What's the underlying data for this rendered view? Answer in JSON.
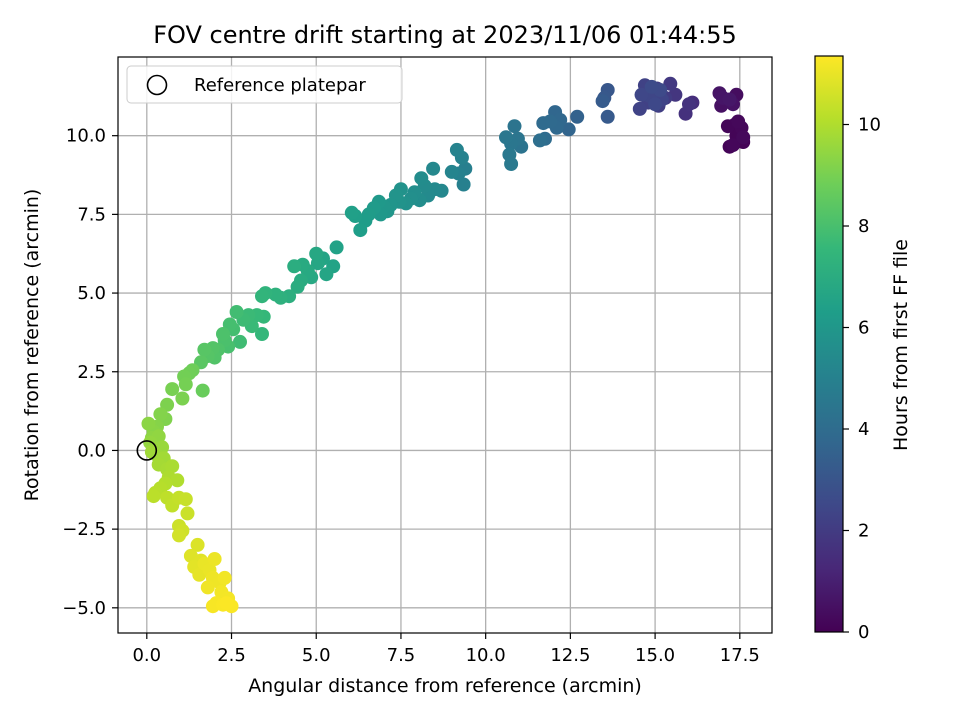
{
  "chart_data": {
    "type": "scatter",
    "title": "FOV centre drift starting at 2023/11/06 01:44:55",
    "xlabel": "Angular distance from reference (arcmin)",
    "ylabel": "Rotation from reference (arcmin)",
    "xlim": [
      -0.85,
      18.45
    ],
    "ylim": [
      -5.8,
      12.5
    ],
    "xticks": [
      0.0,
      2.5,
      5.0,
      7.5,
      10.0,
      12.5,
      15.0,
      17.5
    ],
    "xtick_labels": [
      "0.0",
      "2.5",
      "5.0",
      "7.5",
      "10.0",
      "12.5",
      "15.0",
      "17.5"
    ],
    "yticks": [
      -5.0,
      -2.5,
      0.0,
      2.5,
      5.0,
      7.5,
      10.0
    ],
    "ytick_labels": [
      "−5.0",
      "−2.5",
      "0.0",
      "2.5",
      "5.0",
      "7.5",
      "10.0"
    ],
    "grid": true,
    "legend": {
      "position": "upper-left",
      "entries": [
        "Reference platepar"
      ]
    },
    "reference_point": {
      "x": 0.0,
      "y": 0.0,
      "label": "Reference platepar"
    },
    "colorbar": {
      "label": "Hours from first FF file",
      "colormap": "viridis",
      "range": [
        0,
        11.35
      ],
      "ticks": [
        0,
        2,
        4,
        6,
        8,
        10
      ],
      "tick_labels": [
        "0",
        "2",
        "4",
        "6",
        "8",
        "10"
      ]
    },
    "viridis_stops": [
      "#440154",
      "#482878",
      "#3e4989",
      "#31688e",
      "#26828e",
      "#1f9e89",
      "#35b779",
      "#6ece58",
      "#b5de2b",
      "#fde725"
    ],
    "points": [
      [
        17.35,
        10.35,
        0.02
      ],
      [
        17.5,
        10.1,
        0.05
      ],
      [
        17.6,
        9.8,
        0.08
      ],
      [
        17.2,
        9.65,
        0.1
      ],
      [
        17.4,
        10.0,
        0.12
      ],
      [
        17.15,
        10.3,
        0.15
      ],
      [
        17.55,
        10.25,
        0.18
      ],
      [
        17.3,
        9.7,
        0.2
      ],
      [
        17.45,
        10.45,
        0.22
      ],
      [
        17.6,
        9.95,
        0.25
      ],
      [
        17.4,
        11.3,
        0.4
      ],
      [
        17.1,
        11.1,
        0.45
      ],
      [
        16.95,
        10.95,
        0.5
      ],
      [
        17.3,
        11.0,
        0.55
      ],
      [
        16.9,
        11.35,
        0.6
      ],
      [
        17.0,
        11.2,
        0.65
      ],
      [
        17.2,
        11.15,
        0.7
      ],
      [
        16.1,
        11.05,
        1.5
      ],
      [
        15.9,
        10.7,
        1.6
      ],
      [
        16.0,
        11.0,
        1.7
      ],
      [
        15.6,
        11.3,
        1.8
      ],
      [
        15.45,
        11.65,
        1.9
      ],
      [
        15.3,
        11.2,
        2.0
      ],
      [
        15.05,
        11.5,
        2.05
      ],
      [
        15.1,
        10.95,
        2.1
      ],
      [
        14.95,
        11.35,
        2.15
      ],
      [
        14.8,
        11.05,
        2.2
      ],
      [
        14.7,
        11.6,
        2.25
      ],
      [
        14.55,
        10.85,
        2.3
      ],
      [
        15.2,
        11.15,
        2.35
      ],
      [
        14.85,
        11.25,
        2.4
      ],
      [
        14.6,
        11.3,
        2.45
      ],
      [
        15.0,
        11.0,
        2.5
      ],
      [
        15.15,
        11.45,
        2.55
      ],
      [
        14.9,
        11.55,
        2.6
      ],
      [
        13.6,
        11.45,
        3.1
      ],
      [
        13.5,
        11.2,
        3.15
      ],
      [
        13.6,
        10.6,
        3.2
      ],
      [
        13.45,
        11.1,
        3.25
      ],
      [
        12.7,
        10.6,
        3.55
      ],
      [
        12.45,
        10.2,
        3.65
      ],
      [
        12.05,
        10.75,
        3.75
      ],
      [
        12.2,
        10.5,
        3.8
      ],
      [
        12.1,
        10.25,
        3.85
      ],
      [
        11.9,
        10.45,
        3.9
      ],
      [
        11.7,
        10.4,
        3.95
      ],
      [
        11.75,
        9.9,
        4.0
      ],
      [
        11.6,
        9.85,
        4.1
      ],
      [
        11.05,
        9.65,
        4.3
      ],
      [
        10.85,
        10.3,
        4.35
      ],
      [
        10.95,
        9.9,
        4.4
      ],
      [
        10.75,
        9.75,
        4.45
      ],
      [
        10.6,
        9.95,
        4.5
      ],
      [
        10.7,
        9.4,
        4.55
      ],
      [
        10.75,
        9.1,
        4.6
      ],
      [
        9.4,
        8.95,
        4.9
      ],
      [
        9.35,
        8.45,
        4.95
      ],
      [
        9.2,
        8.8,
        5.0
      ],
      [
        9.3,
        9.3,
        5.05
      ],
      [
        9.15,
        9.55,
        5.1
      ],
      [
        9.0,
        8.85,
        5.15
      ],
      [
        8.7,
        8.25,
        5.25
      ],
      [
        8.45,
        8.95,
        5.3
      ],
      [
        8.5,
        8.3,
        5.35
      ],
      [
        8.3,
        8.1,
        5.4
      ],
      [
        8.2,
        8.4,
        5.45
      ],
      [
        8.1,
        8.65,
        5.5
      ],
      [
        8.05,
        7.95,
        5.55
      ],
      [
        7.9,
        8.2,
        5.6
      ],
      [
        7.8,
        8.0,
        5.65
      ],
      [
        7.65,
        7.85,
        5.7
      ],
      [
        7.5,
        8.3,
        5.75
      ],
      [
        7.45,
        7.9,
        5.8
      ],
      [
        7.35,
        8.1,
        5.85
      ],
      [
        7.2,
        7.8,
        5.9
      ],
      [
        7.1,
        7.6,
        5.95
      ],
      [
        7.0,
        7.75,
        6.0
      ],
      [
        6.9,
        7.5,
        6.05
      ],
      [
        6.85,
        7.9,
        6.1
      ],
      [
        6.7,
        7.7,
        6.15
      ],
      [
        6.55,
        7.5,
        6.2
      ],
      [
        6.45,
        7.3,
        6.25
      ],
      [
        6.3,
        7.0,
        6.3
      ],
      [
        6.15,
        7.45,
        6.35
      ],
      [
        6.05,
        7.55,
        6.4
      ],
      [
        5.6,
        6.45,
        6.5
      ],
      [
        5.5,
        5.85,
        6.55
      ],
      [
        5.2,
        6.1,
        6.6
      ],
      [
        5.3,
        5.6,
        6.65
      ],
      [
        5.05,
        5.95,
        6.7
      ],
      [
        5.0,
        6.25,
        6.75
      ],
      [
        4.85,
        5.5,
        6.8
      ],
      [
        4.75,
        5.7,
        6.85
      ],
      [
        4.6,
        5.9,
        6.9
      ],
      [
        4.55,
        5.4,
        6.95
      ],
      [
        4.45,
        5.2,
        7.0
      ],
      [
        4.35,
        5.85,
        7.05
      ],
      [
        4.2,
        4.9,
        7.1
      ],
      [
        3.95,
        4.85,
        7.2
      ],
      [
        3.8,
        4.95,
        7.25
      ],
      [
        3.5,
        5.0,
        7.35
      ],
      [
        3.4,
        4.9,
        7.4
      ],
      [
        3.4,
        3.7,
        7.5
      ],
      [
        3.45,
        4.25,
        7.55
      ],
      [
        3.25,
        4.3,
        7.6
      ],
      [
        3.1,
        3.95,
        7.65
      ],
      [
        3.0,
        4.3,
        7.7
      ],
      [
        2.85,
        4.15,
        7.75
      ],
      [
        2.75,
        3.45,
        7.8
      ],
      [
        2.65,
        4.4,
        7.85
      ],
      [
        2.55,
        3.85,
        7.9
      ],
      [
        2.45,
        4.0,
        7.95
      ],
      [
        2.4,
        3.3,
        8.0
      ],
      [
        2.3,
        3.5,
        8.05
      ],
      [
        2.25,
        3.7,
        8.1
      ],
      [
        2.1,
        3.2,
        8.15
      ],
      [
        2.0,
        2.95,
        8.2
      ],
      [
        1.95,
        3.25,
        8.25
      ],
      [
        1.8,
        3.0,
        8.3
      ],
      [
        1.7,
        3.2,
        8.35
      ],
      [
        1.6,
        2.8,
        8.4
      ],
      [
        1.65,
        1.9,
        8.7
      ],
      [
        1.35,
        2.55,
        8.8
      ],
      [
        1.25,
        2.45,
        8.85
      ],
      [
        1.1,
        2.35,
        8.9
      ],
      [
        1.15,
        2.1,
        8.95
      ],
      [
        0.75,
        1.95,
        9.0
      ],
      [
        1.05,
        1.65,
        9.05
      ],
      [
        0.6,
        1.45,
        9.1
      ],
      [
        0.55,
        1.0,
        9.15
      ],
      [
        0.4,
        1.15,
        9.2
      ],
      [
        0.3,
        0.75,
        9.25
      ],
      [
        0.2,
        0.6,
        9.3
      ],
      [
        0.05,
        0.85,
        9.35
      ],
      [
        0.15,
        0.4,
        9.4
      ],
      [
        0.35,
        0.45,
        9.45
      ],
      [
        0.1,
        0.25,
        9.5
      ],
      [
        0.25,
        0.05,
        9.55
      ],
      [
        0.45,
        0.1,
        9.6
      ],
      [
        0.3,
        -0.15,
        9.65
      ],
      [
        0.15,
        -0.05,
        9.7
      ],
      [
        0.5,
        -0.25,
        9.75
      ],
      [
        0.35,
        -0.45,
        9.8
      ],
      [
        0.6,
        -0.6,
        9.85
      ],
      [
        0.75,
        -0.5,
        9.9
      ],
      [
        0.65,
        -0.85,
        9.95
      ],
      [
        0.9,
        -0.95,
        10.0
      ],
      [
        0.55,
        -1.05,
        10.05
      ],
      [
        0.4,
        -1.2,
        10.1
      ],
      [
        0.25,
        -1.35,
        10.15
      ],
      [
        0.2,
        -1.45,
        10.2
      ],
      [
        0.6,
        -1.5,
        10.25
      ],
      [
        0.75,
        -1.75,
        10.3
      ],
      [
        0.95,
        -1.5,
        10.35
      ],
      [
        1.15,
        -1.55,
        10.4
      ],
      [
        1.2,
        -2.0,
        10.45
      ],
      [
        0.95,
        -2.4,
        10.5
      ],
      [
        1.05,
        -2.55,
        10.55
      ],
      [
        0.95,
        -2.7,
        10.6
      ],
      [
        1.5,
        -3.0,
        10.75
      ],
      [
        1.3,
        -3.35,
        10.8
      ],
      [
        1.6,
        -3.5,
        10.85
      ],
      [
        1.4,
        -3.7,
        10.9
      ],
      [
        1.55,
        -3.95,
        10.95
      ],
      [
        1.7,
        -3.6,
        11.0
      ],
      [
        1.85,
        -3.8,
        11.02
      ],
      [
        2.0,
        -3.45,
        11.05
      ],
      [
        1.95,
        -4.05,
        11.08
      ],
      [
        2.15,
        -4.2,
        11.1
      ],
      [
        1.8,
        -4.35,
        11.12
      ],
      [
        2.3,
        -4.05,
        11.15
      ],
      [
        2.2,
        -4.5,
        11.18
      ],
      [
        2.4,
        -4.7,
        11.2
      ],
      [
        2.05,
        -4.85,
        11.22
      ],
      [
        1.95,
        -4.95,
        11.25
      ],
      [
        2.25,
        -4.9,
        11.28
      ],
      [
        2.5,
        -4.95,
        11.3
      ],
      [
        2.35,
        -4.85,
        11.32
      ]
    ]
  }
}
